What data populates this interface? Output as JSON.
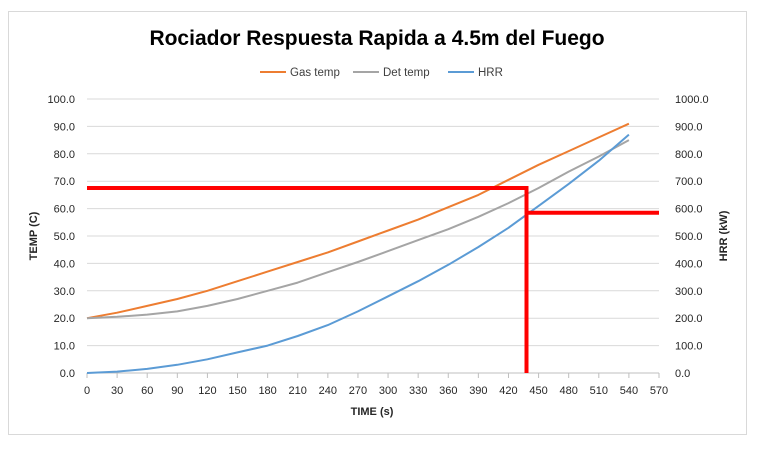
{
  "chart_data": {
    "type": "line",
    "title": "Rociador Respuesta Rapida a 4.5m del Fuego",
    "xlabel": "TIME (s)",
    "ylabel": "TEMP (C)",
    "y2label": "HRR (kW)",
    "xlim": [
      0,
      570
    ],
    "ylim": [
      0,
      100
    ],
    "y2lim": [
      0,
      1000
    ],
    "xticks": [
      0,
      30,
      60,
      90,
      120,
      150,
      180,
      210,
      240,
      270,
      300,
      330,
      360,
      390,
      420,
      450,
      480,
      510,
      540,
      570
    ],
    "xtick_labels": [
      "0",
      "30",
      "60",
      "90",
      "120",
      "150",
      "180",
      "210",
      "240",
      "270",
      "300",
      "330",
      "360",
      "390",
      "420",
      "450",
      "480",
      "510",
      "540",
      "570"
    ],
    "yticks": [
      0,
      10,
      20,
      30,
      40,
      50,
      60,
      70,
      80,
      90,
      100
    ],
    "ytick_labels": [
      "0.0",
      "10.0",
      "20.0",
      "30.0",
      "40.0",
      "50.0",
      "60.0",
      "70.0",
      "80.0",
      "90.0",
      "100.0"
    ],
    "y2ticks": [
      0,
      100,
      200,
      300,
      400,
      500,
      600,
      700,
      800,
      900,
      1000
    ],
    "y2tick_labels": [
      "0.0",
      "100.0",
      "200.0",
      "300.0",
      "400.0",
      "500.0",
      "600.0",
      "700.0",
      "800.0",
      "900.0",
      "1000.0"
    ],
    "grid": "horizontal",
    "legend_position": "top",
    "x": [
      0,
      30,
      60,
      90,
      120,
      150,
      180,
      210,
      240,
      270,
      300,
      330,
      360,
      390,
      420,
      450,
      480,
      510,
      540
    ],
    "series": [
      {
        "name": "Gas temp",
        "axis": "left",
        "color": "#ed7d31",
        "values": [
          20.0,
          22.0,
          24.5,
          27.0,
          30.0,
          33.5,
          37.0,
          40.5,
          44.0,
          48.0,
          52.0,
          56.0,
          60.5,
          65.0,
          70.5,
          76.0,
          81.0,
          86.0,
          91.0
        ]
      },
      {
        "name": "Det temp",
        "axis": "left",
        "color": "#a5a5a5",
        "values": [
          20.0,
          20.5,
          21.3,
          22.5,
          24.5,
          27.0,
          30.0,
          33.0,
          36.8,
          40.5,
          44.5,
          48.5,
          52.5,
          57.0,
          62.0,
          67.5,
          73.5,
          79.0,
          85.0
        ]
      },
      {
        "name": "HRR",
        "axis": "right",
        "color": "#5b9bd5",
        "values": [
          0,
          5,
          15,
          30,
          50,
          75,
          100,
          135,
          175,
          225,
          280,
          335,
          395,
          460,
          530,
          610,
          690,
          775,
          870
        ]
      }
    ],
    "annotations": [
      {
        "description": "red marker line",
        "color": "#ff0000",
        "points": [
          {
            "x": 0,
            "y": 67.5,
            "axis": "left"
          },
          {
            "x": 438,
            "y": 67.5,
            "axis": "left"
          },
          {
            "x": 438,
            "y": 0,
            "axis": "left"
          }
        ]
      },
      {
        "description": "red marker line",
        "color": "#ff0000",
        "points": [
          {
            "x": 438,
            "y": 585,
            "axis": "right"
          },
          {
            "x": 570,
            "y": 585,
            "axis": "right"
          }
        ]
      }
    ]
  }
}
